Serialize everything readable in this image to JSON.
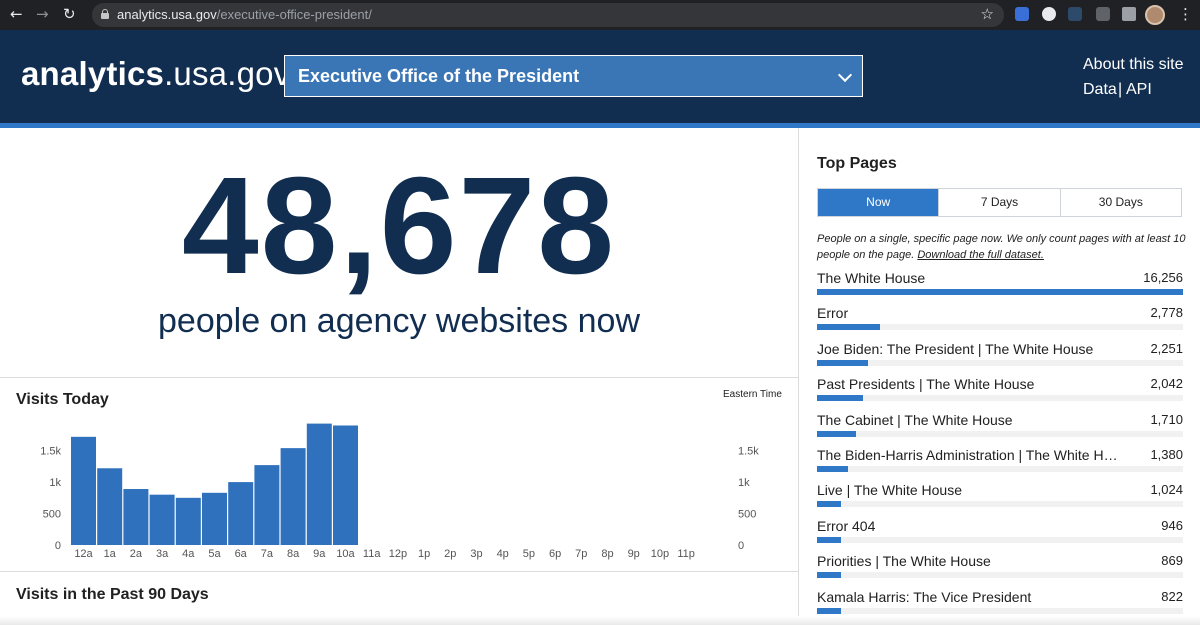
{
  "browser": {
    "url_host": "analytics.usa.gov",
    "url_path": "/executive-office-president/"
  },
  "header": {
    "logo_bold": "analytics",
    "logo_rest": ".usa.gov",
    "agency_selected": "Executive Office of the President",
    "about_link": "About this site",
    "data_link": "Data",
    "separator": "|",
    "api_link": "API"
  },
  "realtime": {
    "count": "48,678",
    "caption": "people on agency websites now"
  },
  "visits_today": {
    "title": "Visits Today",
    "timezone_label": "Eastern Time"
  },
  "visits_90": {
    "title": "Visits in the Past 90 Days"
  },
  "top_pages": {
    "title": "Top Pages",
    "tabs": [
      {
        "label": "Now",
        "active": true
      },
      {
        "label": "7 Days",
        "active": false
      },
      {
        "label": "30 Days",
        "active": false
      }
    ],
    "description": "People on a single, specific page now. We only count pages with at least 10 people on the page.",
    "download_link": "Download the full dataset.",
    "items": [
      {
        "name": "The White House",
        "value": "16,256",
        "count": 16256
      },
      {
        "name": "Error",
        "value": "2,778",
        "count": 2778
      },
      {
        "name": "Joe Biden: The President | The White House",
        "value": "2,251",
        "count": 2251
      },
      {
        "name": "Past Presidents | The White House",
        "value": "2,042",
        "count": 2042
      },
      {
        "name": "The Cabinet | The White House",
        "value": "1,710",
        "count": 1710
      },
      {
        "name": "The Biden-Harris Administration | The White House",
        "value": "1,380",
        "count": 1380
      },
      {
        "name": "Live | The White House",
        "value": "1,024",
        "count": 1024
      },
      {
        "name": "Error 404",
        "value": "946",
        "count": 946
      },
      {
        "name": "Priorities | The White House",
        "value": "869",
        "count": 869
      },
      {
        "name": "Kamala Harris: The Vice President",
        "value": "822",
        "count": 822
      }
    ]
  },
  "colors": {
    "navy": "#112e51",
    "accent_blue": "#2e78c7",
    "bar_blue": "#2f71bd"
  },
  "chart_data": {
    "type": "bar",
    "title": "Visits Today",
    "categories": [
      "12a",
      "1a",
      "2a",
      "3a",
      "4a",
      "5a",
      "6a",
      "7a",
      "8a",
      "9a",
      "10a",
      "11a",
      "12p",
      "1p",
      "2p",
      "3p",
      "4p",
      "5p",
      "6p",
      "7p",
      "8p",
      "9p",
      "10p",
      "11p"
    ],
    "values": [
      1720,
      1220,
      890,
      800,
      750,
      830,
      1000,
      1270,
      1540,
      1930,
      1900,
      null,
      null,
      null,
      null,
      null,
      null,
      null,
      null,
      null,
      null,
      null,
      null,
      null
    ],
    "ylim": [
      0,
      2000
    ],
    "yticks": [
      0,
      500,
      1000,
      1500
    ],
    "ytick_labels": [
      "0",
      "500",
      "1k",
      "1.5k"
    ],
    "xlabel": "",
    "ylabel": "",
    "grid": false
  }
}
